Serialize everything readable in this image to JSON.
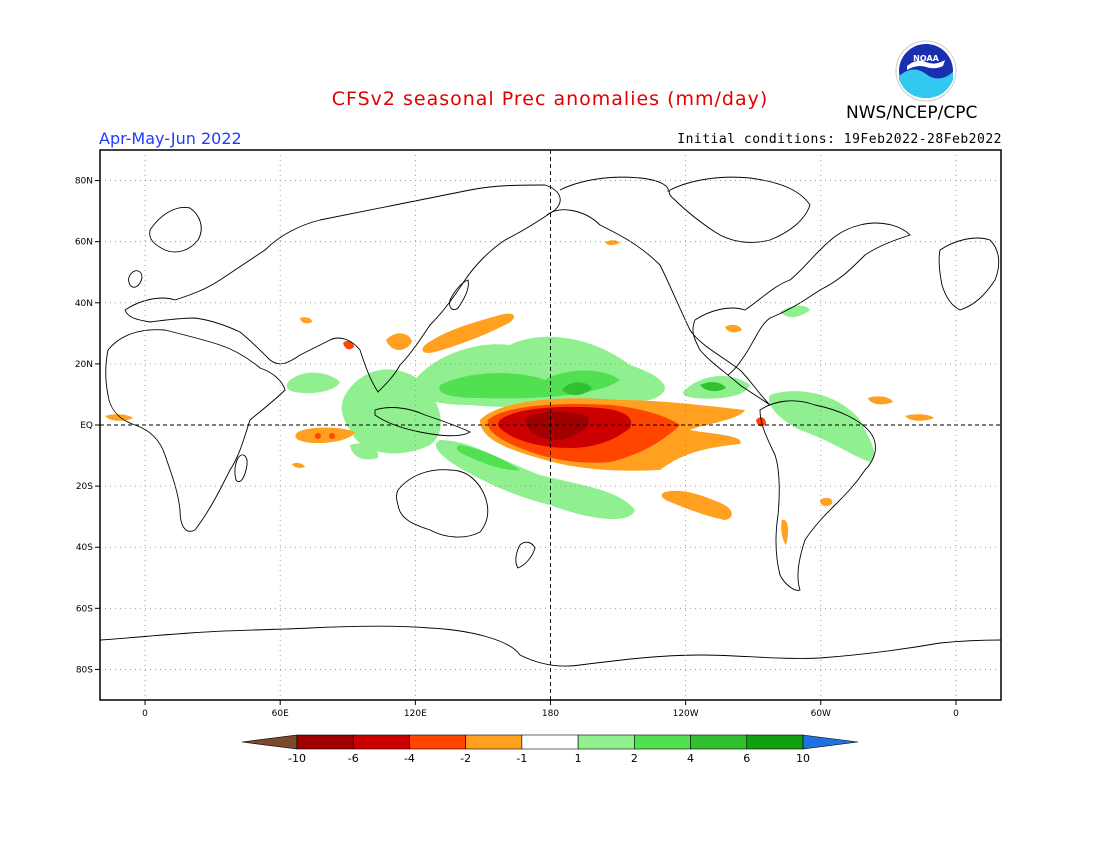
{
  "header": {
    "title": "CFSv2 seasonal Prec anomalies (mm/day)",
    "agency": "NWS/NCEP/CPC",
    "season": "Apr-May-Jun 2022",
    "initial_conditions": "Initial conditions: 19Feb2022-28Feb2022",
    "logo_text": "NOAA"
  },
  "map": {
    "projection": "equirectangular",
    "lon_range": [
      -20,
      380
    ],
    "lat_range": [
      -90,
      90
    ],
    "grid": "dotted",
    "lat_ticks": [
      {
        "lat": 80,
        "label": "80N"
      },
      {
        "lat": 60,
        "label": "60N"
      },
      {
        "lat": 40,
        "label": "40N"
      },
      {
        "lat": 20,
        "label": "20N"
      },
      {
        "lat": 0,
        "label": "EQ"
      },
      {
        "lat": -20,
        "label": "20S"
      },
      {
        "lat": -40,
        "label": "40S"
      },
      {
        "lat": -60,
        "label": "60S"
      },
      {
        "lat": -80,
        "label": "80S"
      }
    ],
    "lon_ticks": [
      {
        "lon": 0,
        "label": "0"
      },
      {
        "lon": 60,
        "label": "60E"
      },
      {
        "lon": 120,
        "label": "120E"
      },
      {
        "lon": 180,
        "label": "180"
      },
      {
        "lon": 240,
        "label": "120W"
      },
      {
        "lon": 300,
        "label": "60W"
      },
      {
        "lon": 360,
        "label": "0"
      }
    ]
  },
  "colorbar": {
    "colors": [
      "#7a4a2a",
      "#a00000",
      "#cc0000",
      "#ff4500",
      "#ffa020",
      "#ffffff",
      "#90f090",
      "#50e050",
      "#30c030",
      "#10a010",
      "#2070e0"
    ],
    "labels": [
      "-10",
      "-6",
      "-4",
      "-2",
      "-1",
      "1",
      "2",
      "4",
      "6",
      "10"
    ]
  }
}
